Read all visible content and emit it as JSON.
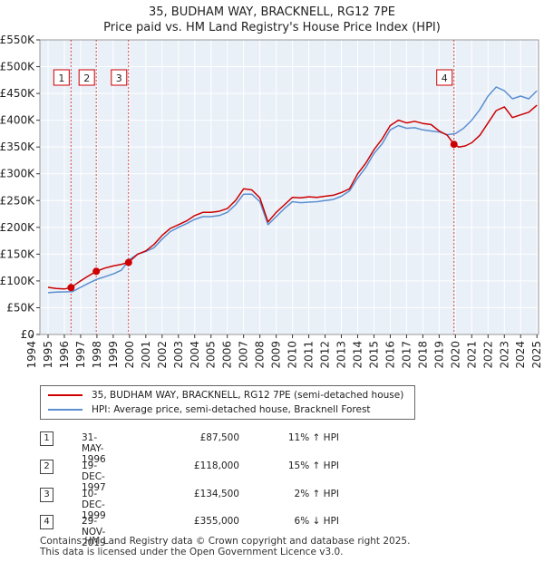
{
  "title_line1": "35, BUDHAM WAY, BRACKNELL, RG12 7PE",
  "title_line2": "Price paid vs. HM Land Registry's House Price Index (HPI)",
  "colors": {
    "property": "#cc0000",
    "hpi": "#5b8fd0",
    "grid": "#dddddd",
    "bg": "#eaf0f8",
    "marker_line": "#cc0000"
  },
  "legend": {
    "property_label": "35, BUDHAM WAY, BRACKNELL, RG12 7PE (semi-detached house)",
    "hpi_label": "HPI: Average price, semi-detached house, Bracknell Forest"
  },
  "transactions": [
    {
      "num": "1",
      "date": "31-MAY-1996",
      "price": "£87,500",
      "hpi": "11% ↑ HPI"
    },
    {
      "num": "2",
      "date": "19-DEC-1997",
      "price": "£118,000",
      "hpi": "15% ↑ HPI"
    },
    {
      "num": "3",
      "date": "10-DEC-1999",
      "price": "£134,500",
      "hpi": "2% ↑ HPI"
    },
    {
      "num": "4",
      "date": "29-NOV-2019",
      "price": "£355,000",
      "hpi": "6% ↓ HPI"
    }
  ],
  "footer_line1": "Contains HM Land Registry data © Crown copyright and database right 2025.",
  "footer_line2": "This data is licensed under the Open Government Licence v3.0.",
  "chart_data": {
    "type": "line",
    "title": "35, BUDHAM WAY, BRACKNELL, RG12 7PE",
    "subtitle": "Price paid vs. HM Land Registry's House Price Index (HPI)",
    "xlim": [
      1994.5,
      2025.1
    ],
    "ylim": [
      0,
      550000
    ],
    "yticks": [
      0,
      50000,
      100000,
      150000,
      200000,
      250000,
      300000,
      350000,
      400000,
      450000,
      500000,
      550000
    ],
    "ytick_labels": [
      "£0",
      "£50K",
      "£100K",
      "£150K",
      "£200K",
      "£250K",
      "£300K",
      "£350K",
      "£400K",
      "£450K",
      "£500K",
      "£550K"
    ],
    "xticks": [
      1994,
      1995,
      1996,
      1997,
      1998,
      1999,
      2000,
      2001,
      2002,
      2003,
      2004,
      2005,
      2006,
      2007,
      2008,
      2009,
      2010,
      2011,
      2012,
      2013,
      2014,
      2015,
      2016,
      2017,
      2018,
      2019,
      2020,
      2021,
      2022,
      2023,
      2024,
      2025
    ],
    "xtick_labels": [
      "1994",
      "1995",
      "1996",
      "1997",
      "1998",
      "1999",
      "2000",
      "2001",
      "2002",
      "2003",
      "2004",
      "2005",
      "2006",
      "2007",
      "2008",
      "2009",
      "2010",
      "2011",
      "2012",
      "2013",
      "2014",
      "2015",
      "2016",
      "2017",
      "2018",
      "2019",
      "2020",
      "2021",
      "2022",
      "2023",
      "2024",
      "2025"
    ],
    "sale_markers": [
      {
        "label": "1",
        "x": 1996.41,
        "y": 87500
      },
      {
        "label": "2",
        "x": 1997.96,
        "y": 118000
      },
      {
        "label": "3",
        "x": 1999.94,
        "y": 134500
      },
      {
        "label": "4",
        "x": 2019.91,
        "y": 355000
      }
    ],
    "series": [
      {
        "name": "35, BUDHAM WAY, BRACKNELL, RG12 7PE (semi-detached house)",
        "x": [
          1995.0,
          1995.5,
          1996.0,
          1996.41,
          1996.8,
          1997.3,
          1997.96,
          1998.5,
          1999.0,
          1999.5,
          1999.94,
          2000.5,
          2001.0,
          2001.5,
          2002.0,
          2002.5,
          2003.0,
          2003.5,
          2004.0,
          2004.5,
          2005.0,
          2005.5,
          2006.0,
          2006.5,
          2007.0,
          2007.5,
          2008.0,
          2008.5,
          2009.0,
          2009.5,
          2010.0,
          2010.5,
          2011.0,
          2011.5,
          2012.0,
          2012.5,
          2013.0,
          2013.5,
          2014.0,
          2014.5,
          2015.0,
          2015.5,
          2016.0,
          2016.5,
          2017.0,
          2017.5,
          2018.0,
          2018.5,
          2019.0,
          2019.5,
          2019.91,
          2020.2,
          2020.6,
          2021.0,
          2021.5,
          2022.0,
          2022.5,
          2023.0,
          2023.5,
          2024.0,
          2024.5,
          2025.0
        ],
        "values": [
          88000,
          86000,
          85000,
          87500,
          96000,
          106000,
          118000,
          124000,
          128000,
          131000,
          134500,
          150000,
          156000,
          168000,
          185000,
          198000,
          205000,
          212000,
          222000,
          228000,
          228000,
          230000,
          235000,
          250000,
          272000,
          270000,
          255000,
          210000,
          228000,
          242000,
          256000,
          255000,
          257000,
          256000,
          258000,
          260000,
          265000,
          272000,
          300000,
          320000,
          345000,
          365000,
          390000,
          400000,
          395000,
          398000,
          394000,
          392000,
          380000,
          372000,
          355000,
          350000,
          352000,
          358000,
          372000,
          395000,
          418000,
          425000,
          405000,
          410000,
          415000,
          428000
        ]
      },
      {
        "name": "HPI: Average price, semi-detached house, Bracknell Forest",
        "x": [
          1995.0,
          1995.5,
          1996.0,
          1996.5,
          1997.0,
          1997.5,
          1998.0,
          1998.5,
          1999.0,
          1999.5,
          2000.0,
          2000.5,
          2001.0,
          2001.5,
          2002.0,
          2002.5,
          2003.0,
          2003.5,
          2004.0,
          2004.5,
          2005.0,
          2005.5,
          2006.0,
          2006.5,
          2007.0,
          2007.5,
          2008.0,
          2008.5,
          2009.0,
          2009.5,
          2010.0,
          2010.5,
          2011.0,
          2011.5,
          2012.0,
          2012.5,
          2013.0,
          2013.5,
          2014.0,
          2014.5,
          2015.0,
          2015.5,
          2016.0,
          2016.5,
          2017.0,
          2017.5,
          2018.0,
          2018.5,
          2019.0,
          2019.5,
          2020.0,
          2020.5,
          2021.0,
          2021.5,
          2022.0,
          2022.5,
          2023.0,
          2023.5,
          2024.0,
          2024.5,
          2025.0
        ],
        "values": [
          78000,
          79000,
          79500,
          80000,
          88000,
          96000,
          103000,
          108000,
          113000,
          120000,
          140000,
          150000,
          155000,
          162000,
          178000,
          192000,
          200000,
          207000,
          215000,
          220000,
          220000,
          222000,
          228000,
          242000,
          262000,
          262000,
          248000,
          205000,
          220000,
          235000,
          248000,
          246000,
          247000,
          248000,
          250000,
          252000,
          258000,
          268000,
          292000,
          312000,
          338000,
          356000,
          382000,
          390000,
          385000,
          386000,
          382000,
          380000,
          378000,
          373000,
          375000,
          385000,
          400000,
          420000,
          445000,
          462000,
          455000,
          440000,
          445000,
          440000,
          455000
        ]
      }
    ]
  }
}
